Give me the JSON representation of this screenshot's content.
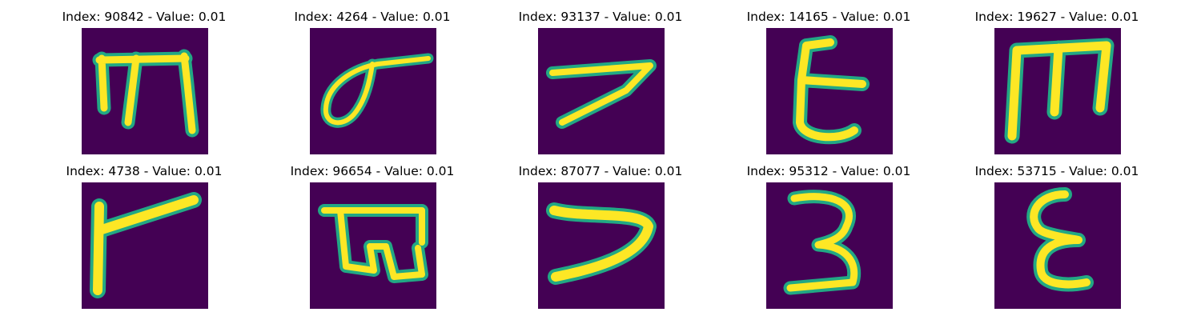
{
  "grid": {
    "items": [
      {
        "title": "Index: 90842 - Value: 0.01",
        "glyph": "m-letter-icon"
      },
      {
        "title": "Index: 4264 - Value: 0.01",
        "glyph": "loop-glyph-icon"
      },
      {
        "title": "Index: 93137 - Value: 0.01",
        "glyph": "seven-glyph-icon"
      },
      {
        "title": "Index: 14165 - Value: 0.01",
        "glyph": "epsilon-glyph-icon"
      },
      {
        "title": "Index: 19627 - Value: 0.01",
        "glyph": "m-letter-icon"
      },
      {
        "title": "Index: 4738 - Value: 0.01",
        "glyph": "flag-glyph-icon"
      },
      {
        "title": "Index: 96654 - Value: 0.01",
        "glyph": "box-loop-glyph-icon"
      },
      {
        "title": "Index: 87077 - Value: 0.01",
        "glyph": "seven-glyph-icon"
      },
      {
        "title": "Index: 95312 - Value: 0.01",
        "glyph": "three-glyph-icon"
      },
      {
        "title": "Index: 53715 - Value: 0.01",
        "glyph": "epsilon-glyph-icon"
      }
    ]
  },
  "colors": {
    "background": "#440154",
    "stroke_edge": "#22a884",
    "stroke_core": "#fde725"
  }
}
